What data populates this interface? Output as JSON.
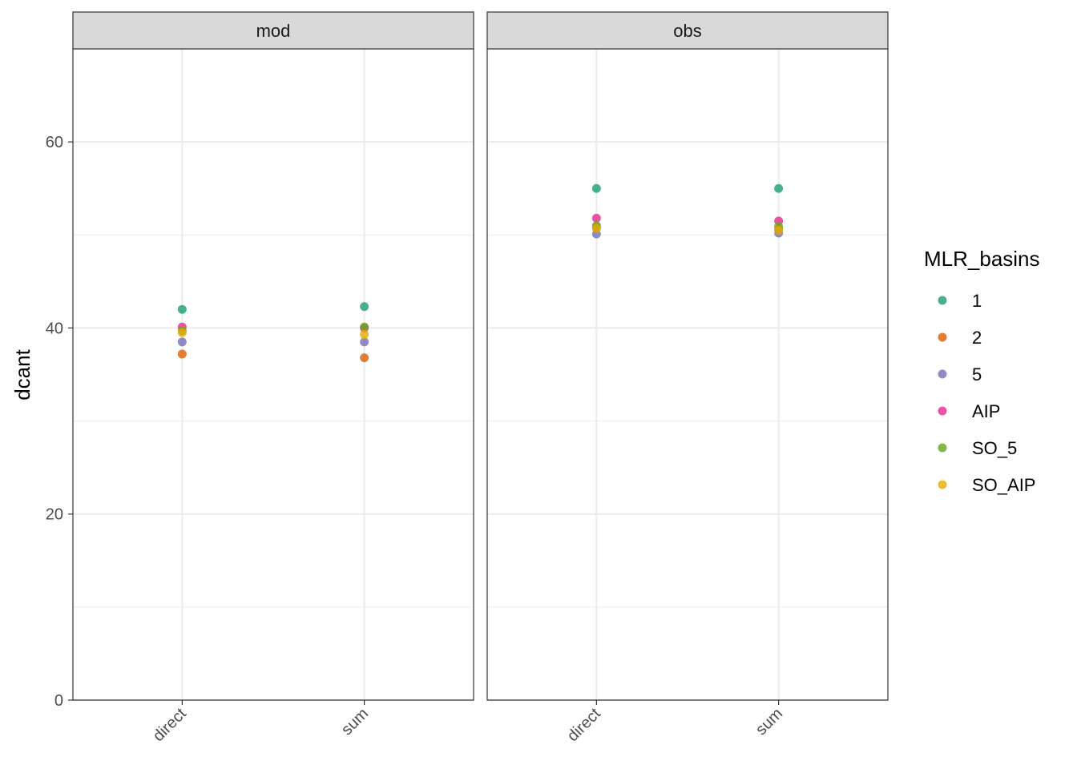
{
  "chart_data": {
    "type": "scatter",
    "ylabel": "dcant",
    "xlabel": "",
    "ylim": [
      0,
      70
    ],
    "yticks": [
      0,
      20,
      40,
      60
    ],
    "categories": [
      "direct",
      "sum"
    ],
    "grid": true,
    "legend_position": "right",
    "legend_title": "MLR_basins",
    "facets": [
      {
        "label": "mod"
      },
      {
        "label": "obs"
      }
    ],
    "series": [
      {
        "name": "1",
        "color": "#1B9E77",
        "points": [
          {
            "facet": "mod",
            "x": "direct",
            "y": 42.0
          },
          {
            "facet": "mod",
            "x": "sum",
            "y": 42.3
          },
          {
            "facet": "obs",
            "x": "direct",
            "y": 55.0
          },
          {
            "facet": "obs",
            "x": "sum",
            "y": 55.0
          }
        ]
      },
      {
        "name": "2",
        "color": "#D95F02",
        "points": [
          {
            "facet": "mod",
            "x": "direct",
            "y": 37.2
          },
          {
            "facet": "mod",
            "x": "sum",
            "y": 36.8
          },
          {
            "facet": "obs",
            "x": "direct",
            "y": 50.8
          },
          {
            "facet": "obs",
            "x": "sum",
            "y": 50.6
          }
        ]
      },
      {
        "name": "5",
        "color": "#7570B3",
        "points": [
          {
            "facet": "mod",
            "x": "direct",
            "y": 38.5
          },
          {
            "facet": "mod",
            "x": "sum",
            "y": 38.5
          },
          {
            "facet": "obs",
            "x": "direct",
            "y": 50.1
          },
          {
            "facet": "obs",
            "x": "sum",
            "y": 50.2
          }
        ]
      },
      {
        "name": "AIP",
        "color": "#E7298A",
        "points": [
          {
            "facet": "mod",
            "x": "direct",
            "y": 40.1
          },
          {
            "facet": "mod",
            "x": "sum",
            "y": 40.0
          },
          {
            "facet": "obs",
            "x": "direct",
            "y": 51.8
          },
          {
            "facet": "obs",
            "x": "sum",
            "y": 51.5
          }
        ]
      },
      {
        "name": "SO_5",
        "color": "#66A61E",
        "points": [
          {
            "facet": "mod",
            "x": "direct",
            "y": 39.7
          },
          {
            "facet": "mod",
            "x": "sum",
            "y": 40.1
          },
          {
            "facet": "obs",
            "x": "direct",
            "y": 51.0
          },
          {
            "facet": "obs",
            "x": "sum",
            "y": 50.9
          }
        ]
      },
      {
        "name": "SO_AIP",
        "color": "#E6AB02",
        "points": [
          {
            "facet": "mod",
            "x": "direct",
            "y": 39.5
          },
          {
            "facet": "mod",
            "x": "sum",
            "y": 39.3
          },
          {
            "facet": "obs",
            "x": "direct",
            "y": 50.7
          },
          {
            "facet": "obs",
            "x": "sum",
            "y": 50.5
          }
        ]
      }
    ]
  }
}
